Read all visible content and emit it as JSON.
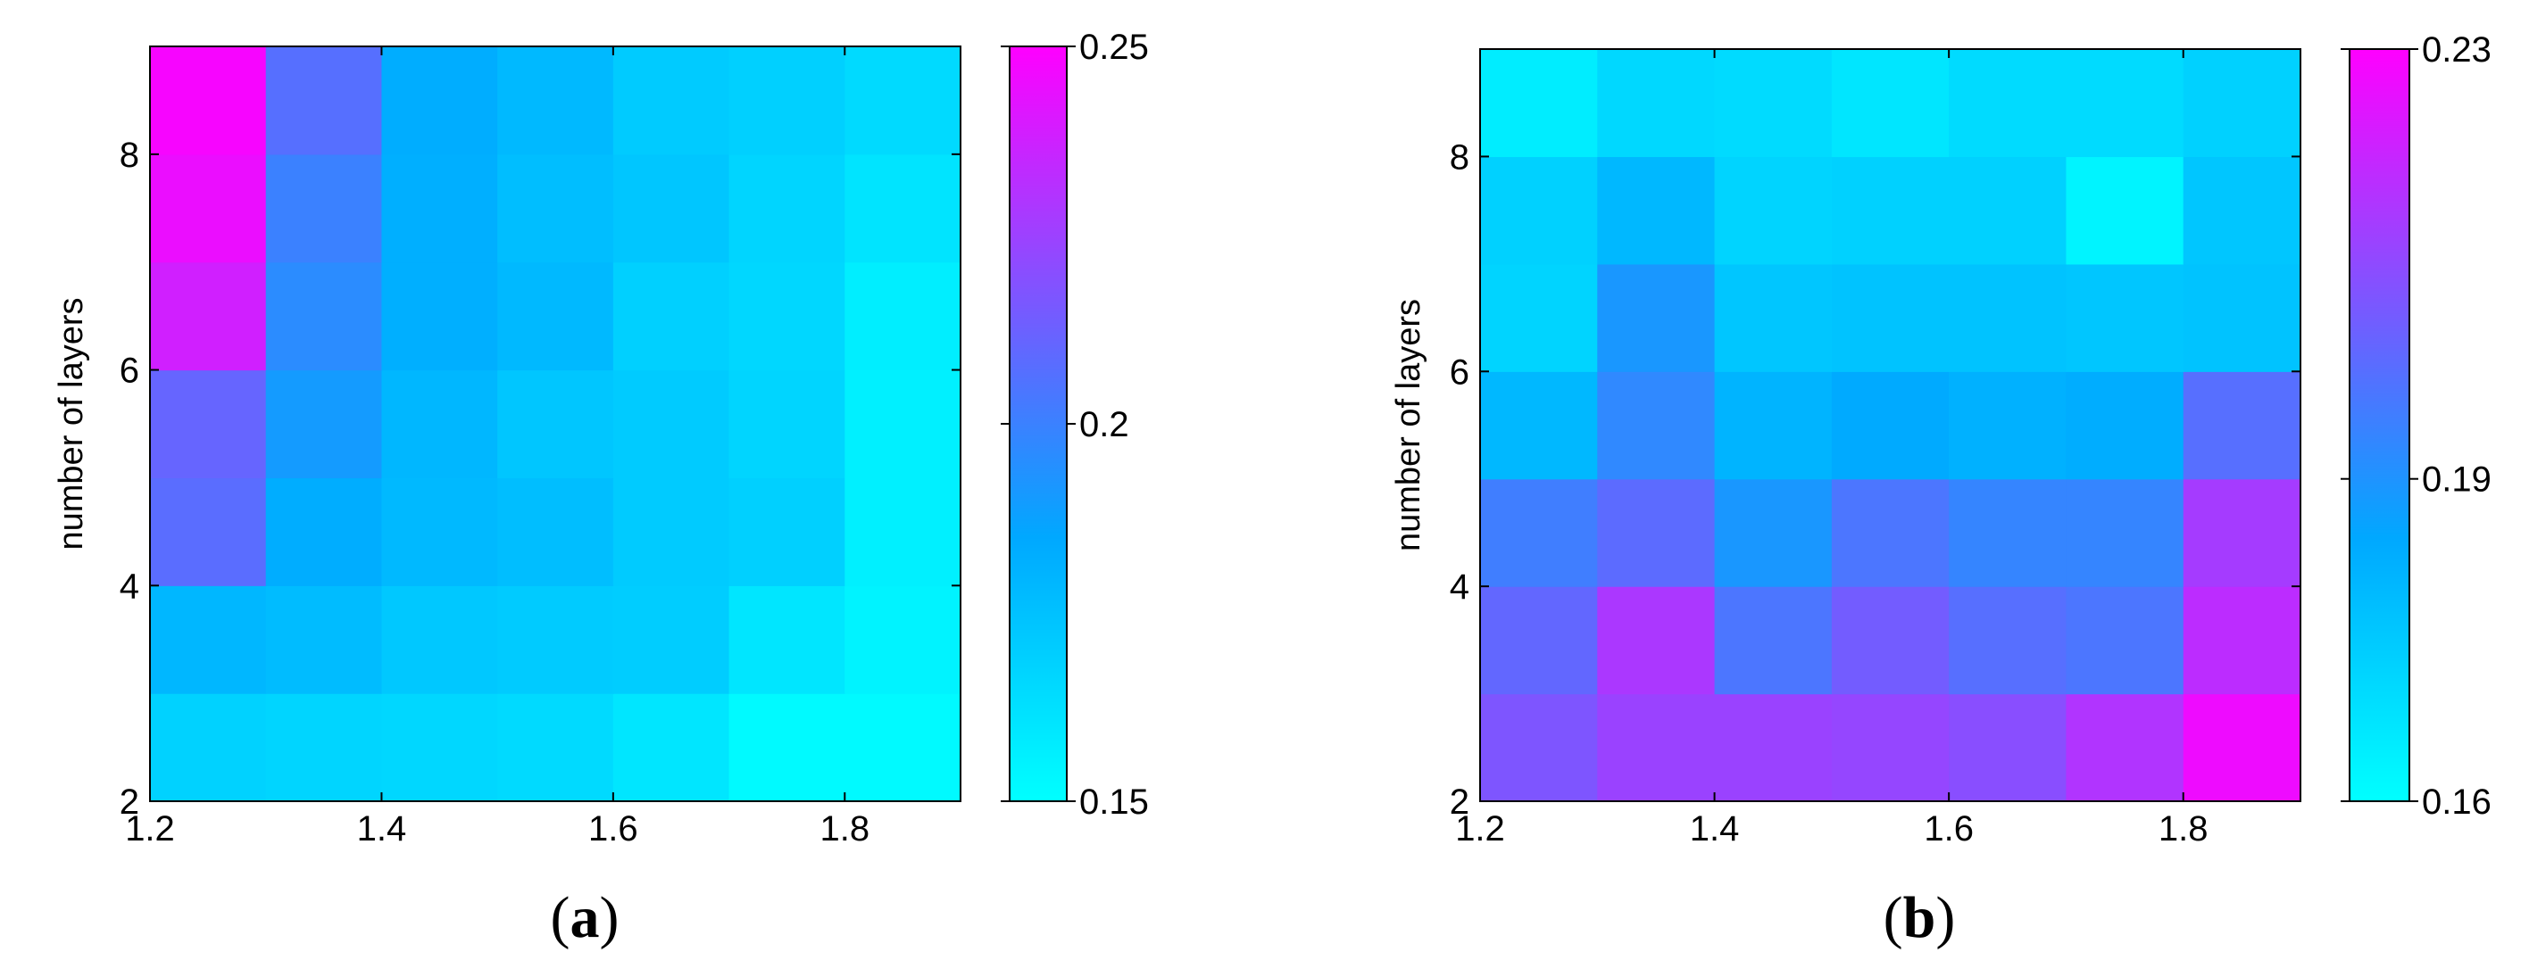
{
  "colors": {
    "low": "#00ffff",
    "mid": "#00a8ff",
    "high": "#ff00ff"
  },
  "chart_data": [
    {
      "type": "heatmap",
      "caption_letter": "a",
      "xlabel": "",
      "ylabel": "number of layers",
      "x_edges": [
        1.2,
        1.3,
        1.4,
        1.5,
        1.6,
        1.7,
        1.8,
        1.9
      ],
      "y_edges": [
        2,
        3,
        4,
        5,
        6,
        7,
        8,
        9
      ],
      "x_ticks": [
        "1.2",
        "1.4",
        "1.6",
        "1.8"
      ],
      "x_tick_values": [
        1.2,
        1.4,
        1.6,
        1.8
      ],
      "y_ticks": [
        "2",
        "4",
        "6",
        "8"
      ],
      "y_tick_values": [
        2,
        4,
        6,
        8
      ],
      "xlim": [
        1.2,
        1.9
      ],
      "ylim": [
        2,
        9
      ],
      "colorbar": {
        "min": 0.15,
        "max": 0.25,
        "ticks": [
          "0.15",
          "0.2",
          "0.25"
        ],
        "tick_values": [
          0.15,
          0.2,
          0.25
        ]
      },
      "z": [
        [
          0.168,
          0.167,
          0.166,
          0.165,
          0.16,
          0.152,
          0.152
        ],
        [
          0.179,
          0.177,
          0.172,
          0.171,
          0.17,
          0.16,
          0.155
        ],
        [
          0.208,
          0.183,
          0.178,
          0.176,
          0.171,
          0.169,
          0.156
        ],
        [
          0.211,
          0.19,
          0.179,
          0.173,
          0.171,
          0.167,
          0.156
        ],
        [
          0.238,
          0.196,
          0.182,
          0.178,
          0.169,
          0.166,
          0.157
        ],
        [
          0.245,
          0.2,
          0.182,
          0.176,
          0.173,
          0.167,
          0.161
        ],
        [
          0.248,
          0.207,
          0.183,
          0.178,
          0.171,
          0.169,
          0.165
        ]
      ]
    },
    {
      "type": "heatmap",
      "caption_letter": "b",
      "xlabel": "",
      "ylabel": "number of layers",
      "x_edges": [
        1.2,
        1.3,
        1.4,
        1.5,
        1.6,
        1.7,
        1.8,
        1.9
      ],
      "y_edges": [
        2,
        3,
        4,
        5,
        6,
        7,
        8,
        9
      ],
      "x_ticks": [
        "1.2",
        "1.4",
        "1.6",
        "1.8"
      ],
      "x_tick_values": [
        1.2,
        1.4,
        1.6,
        1.8
      ],
      "y_ticks": [
        "2",
        "4",
        "6",
        "8"
      ],
      "y_tick_values": [
        2,
        4,
        6,
        8
      ],
      "xlim": [
        1.2,
        1.9
      ],
      "ylim": [
        2,
        9
      ],
      "colorbar": {
        "min": 0.16,
        "max": 0.23,
        "ticks": [
          "0.16",
          "0.19",
          "0.23"
        ],
        "tick_values": [
          0.16,
          0.19,
          0.23
        ]
      },
      "z": [
        [
          0.207,
          0.212,
          0.212,
          0.211,
          0.209,
          0.216,
          0.227
        ],
        [
          0.202,
          0.215,
          0.198,
          0.205,
          0.2,
          0.198,
          0.218
        ],
        [
          0.196,
          0.201,
          0.189,
          0.198,
          0.194,
          0.194,
          0.214
        ],
        [
          0.18,
          0.193,
          0.181,
          0.184,
          0.182,
          0.183,
          0.2
        ],
        [
          0.172,
          0.189,
          0.176,
          0.177,
          0.177,
          0.176,
          0.177
        ],
        [
          0.173,
          0.18,
          0.172,
          0.173,
          0.173,
          0.163,
          0.176
        ],
        [
          0.165,
          0.171,
          0.17,
          0.167,
          0.17,
          0.17,
          0.173
        ]
      ]
    }
  ]
}
